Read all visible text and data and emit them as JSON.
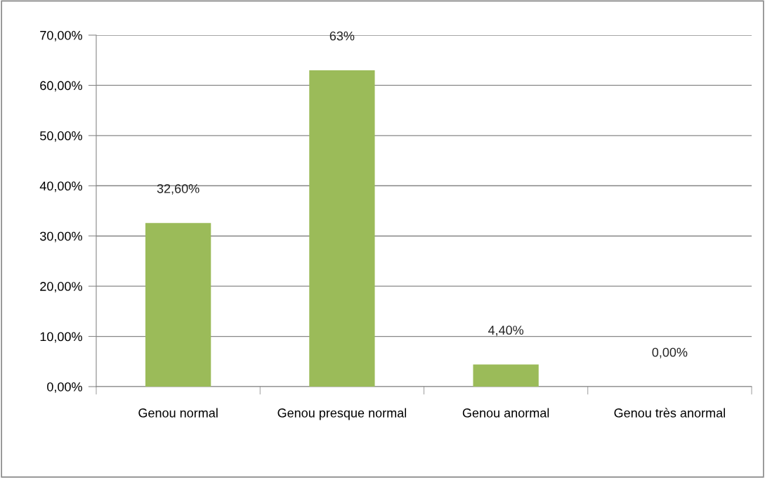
{
  "chart_data": {
    "type": "bar",
    "categories": [
      "Genou normal",
      "Genou presque normal",
      "Genou anormal",
      "Genou très anormal"
    ],
    "values": [
      32.6,
      63,
      4.4,
      0
    ],
    "value_labels": [
      "32,60%",
      "63%",
      "4,40%",
      "0,00%"
    ],
    "color": "#9bbb59",
    "ylim": [
      0,
      70
    ],
    "yticks": [
      {
        "value": 0,
        "label": "0,00%"
      },
      {
        "value": 10,
        "label": "10,00%"
      },
      {
        "value": 20,
        "label": "20,00%"
      },
      {
        "value": 30,
        "label": "30,00%"
      },
      {
        "value": 40,
        "label": "40,00%"
      },
      {
        "value": 50,
        "label": "50,00%"
      },
      {
        "value": 60,
        "label": "60,00%"
      },
      {
        "value": 70,
        "label": "70,00%"
      }
    ],
    "grid": "y",
    "legend": false
  }
}
